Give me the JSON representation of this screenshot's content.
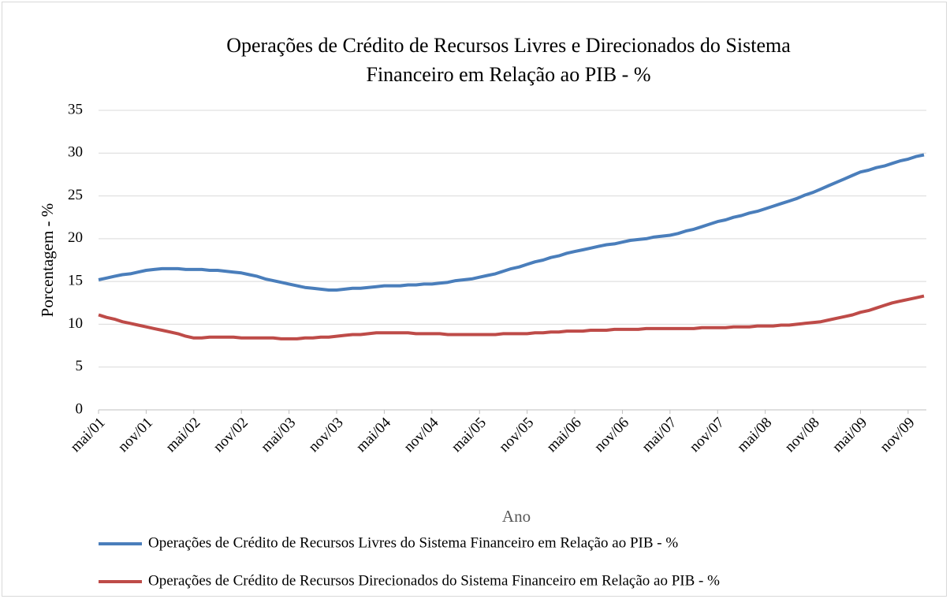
{
  "chart_data": {
    "type": "line",
    "title": "Operações de Crédito de Recursos Livres e Direcionados do Sistema",
    "title_line2": "Financeiro em Relação ao PIB - %",
    "ylabel": "Porcentagem - %",
    "xlabel": "Ano",
    "categories": [
      "mai/01",
      null,
      null,
      null,
      null,
      null,
      "nov/01",
      null,
      null,
      null,
      null,
      null,
      "mai/02",
      null,
      null,
      null,
      null,
      null,
      "nov/02",
      null,
      null,
      null,
      null,
      null,
      "mai/03",
      null,
      null,
      null,
      null,
      null,
      "nov/03",
      null,
      null,
      null,
      null,
      null,
      "mai/04",
      null,
      null,
      null,
      null,
      null,
      "nov/04",
      null,
      null,
      null,
      null,
      null,
      "mai/05",
      null,
      null,
      null,
      null,
      null,
      "nov/05",
      null,
      null,
      null,
      null,
      null,
      "mai/06",
      null,
      null,
      null,
      null,
      null,
      "nov/06",
      null,
      null,
      null,
      null,
      null,
      "mai/07",
      null,
      null,
      null,
      null,
      null,
      "nov/07",
      null,
      null,
      null,
      null,
      null,
      "mai/08",
      null,
      null,
      null,
      null,
      null,
      "nov/08",
      null,
      null,
      null,
      null,
      null,
      "mai/09",
      null,
      null,
      null,
      null,
      null,
      "nov/09",
      null,
      null
    ],
    "series": [
      {
        "name": "Operações de Crédito de Recursos Livres do Sistema Financeiro em Relação ao PIB - %",
        "color": "#4a7ebb",
        "values": [
          15.2,
          15.4,
          15.6,
          15.8,
          15.9,
          16.1,
          16.3,
          16.4,
          16.5,
          16.5,
          16.5,
          16.4,
          16.4,
          16.4,
          16.3,
          16.3,
          16.2,
          16.1,
          16.0,
          15.8,
          15.6,
          15.3,
          15.1,
          14.9,
          14.7,
          14.5,
          14.3,
          14.2,
          14.1,
          14.0,
          14.0,
          14.1,
          14.2,
          14.2,
          14.3,
          14.4,
          14.5,
          14.5,
          14.5,
          14.6,
          14.6,
          14.7,
          14.7,
          14.8,
          14.9,
          15.1,
          15.2,
          15.3,
          15.5,
          15.7,
          15.9,
          16.2,
          16.5,
          16.7,
          17.0,
          17.3,
          17.5,
          17.8,
          18.0,
          18.3,
          18.5,
          18.7,
          18.9,
          19.1,
          19.3,
          19.4,
          19.6,
          19.8,
          19.9,
          20.0,
          20.2,
          20.3,
          20.4,
          20.6,
          20.9,
          21.1,
          21.4,
          21.7,
          22.0,
          22.2,
          22.5,
          22.7,
          23.0,
          23.2,
          23.5,
          23.8,
          24.1,
          24.4,
          24.7,
          25.1,
          25.4,
          25.8,
          26.2,
          26.6,
          27.0,
          27.4,
          27.8,
          28.0,
          28.3,
          28.5,
          28.8,
          29.1,
          29.3,
          29.6,
          29.8
        ]
      },
      {
        "name": "Operações de Crédito de Recursos Direcionados do Sistema Financeiro em Relação ao PIB - %",
        "color": "#be4b48",
        "values": [
          11.1,
          10.8,
          10.6,
          10.3,
          10.1,
          9.9,
          9.7,
          9.5,
          9.3,
          9.1,
          8.9,
          8.6,
          8.4,
          8.4,
          8.5,
          8.5,
          8.5,
          8.5,
          8.4,
          8.4,
          8.4,
          8.4,
          8.4,
          8.3,
          8.3,
          8.3,
          8.4,
          8.4,
          8.5,
          8.5,
          8.6,
          8.7,
          8.8,
          8.8,
          8.9,
          9.0,
          9.0,
          9.0,
          9.0,
          9.0,
          8.9,
          8.9,
          8.9,
          8.9,
          8.8,
          8.8,
          8.8,
          8.8,
          8.8,
          8.8,
          8.8,
          8.9,
          8.9,
          8.9,
          8.9,
          9.0,
          9.0,
          9.1,
          9.1,
          9.2,
          9.2,
          9.2,
          9.3,
          9.3,
          9.3,
          9.4,
          9.4,
          9.4,
          9.4,
          9.5,
          9.5,
          9.5,
          9.5,
          9.5,
          9.5,
          9.5,
          9.6,
          9.6,
          9.6,
          9.6,
          9.7,
          9.7,
          9.7,
          9.8,
          9.8,
          9.8,
          9.9,
          9.9,
          10.0,
          10.1,
          10.2,
          10.3,
          10.5,
          10.7,
          10.9,
          11.1,
          11.4,
          11.6,
          11.9,
          12.2,
          12.5,
          12.7,
          12.9,
          13.1,
          13.3
        ]
      }
    ],
    "ylim": [
      0,
      35
    ],
    "yticks": [
      0,
      5,
      10,
      15,
      20,
      25,
      30,
      35
    ],
    "grid": true,
    "legend": "bottom"
  }
}
